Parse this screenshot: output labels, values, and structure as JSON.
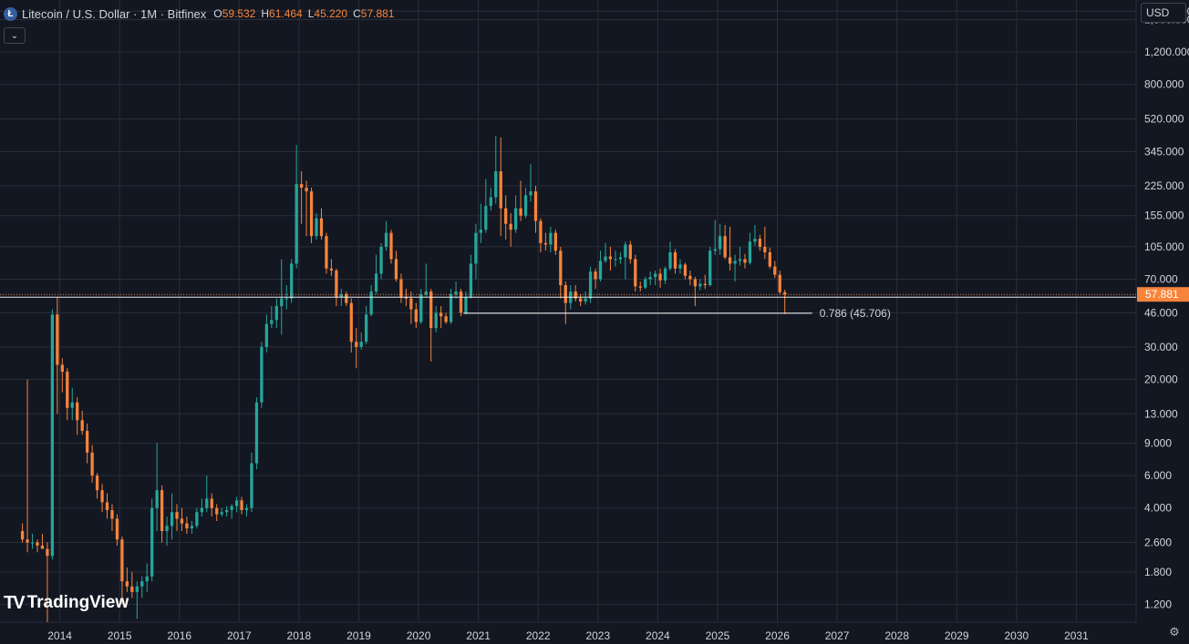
{
  "header": {
    "title": "Litecoin / U.S. Dollar · 1M · Bitfinex",
    "symbol_icon": "litecoin-logo-icon",
    "open_key": "O",
    "open_value": "59.532",
    "high_key": "H",
    "high_value": "61.464",
    "low_key": "L",
    "low_value": "45.220",
    "close_key": "C",
    "close_value": "57.881"
  },
  "currency_label": "USD",
  "logo_text": "TradingView",
  "colors": {
    "background": "#131722",
    "grid": "#2a2e39",
    "up": "#26a69a",
    "down": "#f7843b",
    "price_line": "#f7843b",
    "level_line": "#ffffff",
    "axis_text": "#d1d4dc"
  },
  "chart_data": {
    "type": "candlestick",
    "y_scale": "log",
    "ylim": [
      0.96,
      2300
    ],
    "xlim": [
      "2013-01",
      "2032-01"
    ],
    "y_ticks": [
      "2,000.000",
      "1,800.000",
      "1,200.000",
      "800.000",
      "520.000",
      "345.000",
      "225.000",
      "155.000",
      "105.000",
      "70.000",
      "46.000",
      "30.000",
      "20.000",
      "13.000",
      "9.000",
      "6.000",
      "4.000",
      "2.600",
      "1.800",
      "1.200"
    ],
    "x_ticks": [
      "2014",
      "2015",
      "2016",
      "2017",
      "2018",
      "2019",
      "2020",
      "2021",
      "2022",
      "2023",
      "2024",
      "2025",
      "2026",
      "2027",
      "2028",
      "2029",
      "2030",
      "2031"
    ],
    "last_price": "57.881",
    "fib_level": {
      "label": "0.786 (45.706)",
      "value": 45.706,
      "from": "2020-10",
      "to": "2026-08"
    },
    "ohlc": [
      [
        "2013-05",
        3.0,
        3.3,
        2.6,
        2.7
      ],
      [
        "2013-06",
        2.7,
        20.0,
        2.3,
        2.6
      ],
      [
        "2013-07",
        2.6,
        2.9,
        2.4,
        2.6
      ],
      [
        "2013-08",
        2.6,
        2.7,
        2.3,
        2.5
      ],
      [
        "2013-09",
        2.5,
        2.9,
        2.4,
        2.4
      ],
      [
        "2013-10",
        2.4,
        2.6,
        0.8,
        2.2
      ],
      [
        "2013-11",
        2.2,
        48.0,
        2.1,
        45.0
      ],
      [
        "2013-12",
        45.0,
        56.0,
        13.0,
        24.0
      ],
      [
        "2014-01",
        24.0,
        26.0,
        17.0,
        22.0
      ],
      [
        "2014-02",
        22.0,
        23.0,
        12.0,
        14.0
      ],
      [
        "2014-03",
        14.0,
        18.0,
        12.0,
        15.0
      ],
      [
        "2014-04",
        15.0,
        16.0,
        10.0,
        12.0
      ],
      [
        "2014-05",
        12.0,
        13.5,
        10.0,
        10.5
      ],
      [
        "2014-06",
        10.5,
        11.5,
        7.0,
        8.0
      ],
      [
        "2014-07",
        8.0,
        8.8,
        5.5,
        6.0
      ],
      [
        "2014-08",
        6.0,
        6.2,
        4.5,
        5.0
      ],
      [
        "2014-09",
        5.0,
        5.4,
        3.8,
        4.3
      ],
      [
        "2014-10",
        4.3,
        4.8,
        3.5,
        3.9
      ],
      [
        "2014-11",
        3.9,
        4.2,
        3.0,
        3.5
      ],
      [
        "2014-12",
        3.5,
        3.7,
        2.5,
        2.7
      ],
      [
        "2015-01",
        2.7,
        2.8,
        1.2,
        1.6
      ],
      [
        "2015-02",
        1.6,
        1.9,
        1.4,
        1.5
      ],
      [
        "2015-03",
        1.5,
        1.8,
        1.3,
        1.4
      ],
      [
        "2015-04",
        1.4,
        1.6,
        1.0,
        1.5
      ],
      [
        "2015-05",
        1.5,
        1.7,
        1.3,
        1.6
      ],
      [
        "2015-06",
        1.6,
        2.0,
        1.4,
        1.7
      ],
      [
        "2015-07",
        1.7,
        4.5,
        1.6,
        4.0
      ],
      [
        "2015-08",
        4.0,
        9.0,
        3.0,
        5.0
      ],
      [
        "2015-09",
        5.0,
        5.3,
        2.6,
        3.0
      ],
      [
        "2015-10",
        3.0,
        3.6,
        2.5,
        3.2
      ],
      [
        "2015-11",
        3.2,
        4.8,
        2.7,
        3.8
      ],
      [
        "2015-12",
        3.8,
        4.2,
        3.0,
        3.5
      ],
      [
        "2016-01",
        3.5,
        4.0,
        3.0,
        3.3
      ],
      [
        "2016-02",
        3.3,
        3.6,
        2.9,
        3.1
      ],
      [
        "2016-03",
        3.1,
        3.4,
        2.9,
        3.2
      ],
      [
        "2016-04",
        3.2,
        4.0,
        3.1,
        3.8
      ],
      [
        "2016-05",
        3.8,
        4.5,
        3.6,
        4.0
      ],
      [
        "2016-06",
        4.0,
        6.0,
        3.8,
        4.5
      ],
      [
        "2016-07",
        4.5,
        4.8,
        3.6,
        4.0
      ],
      [
        "2016-08",
        4.0,
        4.2,
        3.4,
        3.7
      ],
      [
        "2016-09",
        3.7,
        4.0,
        3.6,
        3.8
      ],
      [
        "2016-10",
        3.8,
        4.1,
        3.6,
        3.9
      ],
      [
        "2016-11",
        3.9,
        4.2,
        3.5,
        4.1
      ],
      [
        "2016-12",
        4.1,
        4.6,
        3.8,
        4.4
      ],
      [
        "2017-01",
        4.4,
        4.6,
        3.7,
        3.9
      ],
      [
        "2017-02",
        3.9,
        4.2,
        3.6,
        4.0
      ],
      [
        "2017-03",
        4.0,
        8.0,
        3.8,
        7.0
      ],
      [
        "2017-04",
        7.0,
        16.0,
        6.5,
        15.0
      ],
      [
        "2017-05",
        15.0,
        32.0,
        14.0,
        30.0
      ],
      [
        "2017-06",
        30.0,
        45.0,
        28.0,
        40.0
      ],
      [
        "2017-07",
        40.0,
        50.0,
        38.0,
        42.0
      ],
      [
        "2017-08",
        42.0,
        55.0,
        38.0,
        50.0
      ],
      [
        "2017-09",
        50.0,
        90.0,
        35.0,
        55.0
      ],
      [
        "2017-10",
        55.0,
        65.0,
        48.0,
        55.0
      ],
      [
        "2017-11",
        55.0,
        90.0,
        52.0,
        85.0
      ],
      [
        "2017-12",
        85.0,
        375.0,
        80.0,
        230.0
      ],
      [
        "2018-01",
        230.0,
        270.0,
        140.0,
        220.0
      ],
      [
        "2018-02",
        220.0,
        240.0,
        120.0,
        210.0
      ],
      [
        "2018-03",
        210.0,
        220.0,
        110.0,
        120.0
      ],
      [
        "2018-04",
        120.0,
        160.0,
        115.0,
        150.0
      ],
      [
        "2018-05",
        150.0,
        170.0,
        115.0,
        120.0
      ],
      [
        "2018-06",
        120.0,
        125.0,
        75.0,
        80.0
      ],
      [
        "2018-07",
        80.0,
        90.0,
        73.0,
        78.0
      ],
      [
        "2018-08",
        78.0,
        80.0,
        50.0,
        56.0
      ],
      [
        "2018-09",
        56.0,
        62.0,
        50.0,
        58.0
      ],
      [
        "2018-10",
        58.0,
        60.0,
        50.0,
        52.0
      ],
      [
        "2018-11",
        52.0,
        55.0,
        28.0,
        32.0
      ],
      [
        "2018-12",
        32.0,
        38.0,
        23.0,
        30.0
      ],
      [
        "2019-01",
        30.0,
        36.0,
        29.0,
        32.0
      ],
      [
        "2019-02",
        32.0,
        50.0,
        31.0,
        45.0
      ],
      [
        "2019-03",
        45.0,
        65.0,
        44.0,
        60.0
      ],
      [
        "2019-04",
        60.0,
        95.0,
        58.0,
        75.0
      ],
      [
        "2019-05",
        75.0,
        110.0,
        70.0,
        105.0
      ],
      [
        "2019-06",
        105.0,
        145.0,
        100.0,
        125.0
      ],
      [
        "2019-07",
        125.0,
        130.0,
        85.0,
        90.0
      ],
      [
        "2019-08",
        90.0,
        100.0,
        68.0,
        70.0
      ],
      [
        "2019-09",
        70.0,
        75.0,
        52.0,
        56.0
      ],
      [
        "2019-10",
        56.0,
        62.0,
        50.0,
        55.0
      ],
      [
        "2019-11",
        55.0,
        60.0,
        40.0,
        48.0
      ],
      [
        "2019-12",
        48.0,
        52.0,
        38.0,
        41.0
      ],
      [
        "2020-01",
        41.0,
        62.0,
        40.0,
        58.0
      ],
      [
        "2020-02",
        58.0,
        85.0,
        56.0,
        60.0
      ],
      [
        "2020-03",
        60.0,
        62.0,
        25.0,
        38.0
      ],
      [
        "2020-04",
        38.0,
        50.0,
        36.0,
        46.0
      ],
      [
        "2020-05",
        46.0,
        50.0,
        38.0,
        44.0
      ],
      [
        "2020-06",
        44.0,
        46.0,
        40.0,
        41.0
      ],
      [
        "2020-07",
        41.0,
        62.0,
        40.0,
        58.0
      ],
      [
        "2020-08",
        58.0,
        68.0,
        55.0,
        60.0
      ],
      [
        "2020-09",
        60.0,
        62.0,
        44.0,
        46.0
      ],
      [
        "2020-10",
        46.0,
        60.0,
        45.0,
        56.0
      ],
      [
        "2020-11",
        56.0,
        95.0,
        55.0,
        85.0
      ],
      [
        "2020-12",
        85.0,
        140.0,
        70.0,
        125.0
      ],
      [
        "2021-01",
        125.0,
        180.0,
        110.0,
        130.0
      ],
      [
        "2021-02",
        130.0,
        245.0,
        125.0,
        175.0
      ],
      [
        "2021-03",
        175.0,
        220.0,
        165.0,
        195.0
      ],
      [
        "2021-04",
        195.0,
        420.0,
        180.0,
        270.0
      ],
      [
        "2021-05",
        270.0,
        412.0,
        120.0,
        170.0
      ],
      [
        "2021-06",
        170.0,
        200.0,
        115.0,
        140.0
      ],
      [
        "2021-07",
        140.0,
        160.0,
        105.0,
        130.0
      ],
      [
        "2021-08",
        130.0,
        200.0,
        125.0,
        170.0
      ],
      [
        "2021-09",
        170.0,
        240.0,
        145.0,
        155.0
      ],
      [
        "2021-10",
        155.0,
        220.0,
        150.0,
        200.0
      ],
      [
        "2021-11",
        200.0,
        295.0,
        185.0,
        210.0
      ],
      [
        "2021-12",
        210.0,
        225.0,
        125.0,
        145.0
      ],
      [
        "2022-01",
        145.0,
        150.0,
        98.0,
        110.0
      ],
      [
        "2022-02",
        110.0,
        125.0,
        100.0,
        108.0
      ],
      [
        "2022-03",
        108.0,
        135.0,
        98.0,
        125.0
      ],
      [
        "2022-04",
        125.0,
        130.0,
        95.0,
        100.0
      ],
      [
        "2022-05",
        100.0,
        105.0,
        55.0,
        65.0
      ],
      [
        "2022-06",
        65.0,
        68.0,
        40.0,
        52.0
      ],
      [
        "2022-07",
        52.0,
        65.0,
        48.0,
        60.0
      ],
      [
        "2022-08",
        60.0,
        65.0,
        53.0,
        55.0
      ],
      [
        "2022-09",
        55.0,
        58.0,
        50.0,
        53.0
      ],
      [
        "2022-10",
        53.0,
        60.0,
        51.0,
        55.0
      ],
      [
        "2022-11",
        55.0,
        82.0,
        52.0,
        77.0
      ],
      [
        "2022-12",
        77.0,
        80.0,
        62.0,
        70.0
      ],
      [
        "2023-01",
        70.0,
        100.0,
        68.0,
        88.0
      ],
      [
        "2023-02",
        88.0,
        110.0,
        86.0,
        93.0
      ],
      [
        "2023-03",
        93.0,
        105.0,
        78.0,
        90.0
      ],
      [
        "2023-04",
        90.0,
        100.0,
        82.0,
        90.0
      ],
      [
        "2023-05",
        90.0,
        98.0,
        85.0,
        92.0
      ],
      [
        "2023-06",
        92.0,
        112.0,
        70.0,
        108.0
      ],
      [
        "2023-07",
        108.0,
        113.0,
        85.0,
        90.0
      ],
      [
        "2023-08",
        90.0,
        95.0,
        60.0,
        64.0
      ],
      [
        "2023-09",
        64.0,
        68.0,
        60.0,
        63.0
      ],
      [
        "2023-10",
        63.0,
        72.0,
        62.0,
        70.0
      ],
      [
        "2023-11",
        70.0,
        77.0,
        65.0,
        72.0
      ],
      [
        "2023-12",
        72.0,
        78.0,
        65.0,
        75.0
      ],
      [
        "2024-01",
        75.0,
        80.0,
        63.0,
        69.0
      ],
      [
        "2024-02",
        69.0,
        82.0,
        66.0,
        80.0
      ],
      [
        "2024-03",
        80.0,
        112.0,
        78.0,
        98.0
      ],
      [
        "2024-04",
        98.0,
        102.0,
        75.0,
        80.0
      ],
      [
        "2024-05",
        80.0,
        90.0,
        75.0,
        84.0
      ],
      [
        "2024-06",
        84.0,
        86.0,
        70.0,
        73.0
      ],
      [
        "2024-07",
        73.0,
        78.0,
        65.0,
        70.0
      ],
      [
        "2024-08",
        70.0,
        72.0,
        50.0,
        64.0
      ],
      [
        "2024-09",
        64.0,
        70.0,
        61.0,
        66.0
      ],
      [
        "2024-10",
        66.0,
        74.0,
        62.0,
        65.0
      ],
      [
        "2024-11",
        65.0,
        105.0,
        64.0,
        100.0
      ],
      [
        "2024-12",
        100.0,
        147.0,
        95.0,
        102.0
      ],
      [
        "2025-01",
        102.0,
        140.0,
        95.0,
        120.0
      ],
      [
        "2025-02",
        120.0,
        138.0,
        90.0,
        92.0
      ],
      [
        "2025-03",
        92.0,
        135.0,
        78.0,
        85.0
      ],
      [
        "2025-04",
        85.0,
        95.0,
        68.0,
        88.0
      ],
      [
        "2025-05",
        88.0,
        105.0,
        83.0,
        90.0
      ],
      [
        "2025-06",
        90.0,
        96.0,
        80.0,
        86.0
      ],
      [
        "2025-07",
        86.0,
        125.0,
        84.0,
        112.0
      ],
      [
        "2025-08",
        112.0,
        138.0,
        106.0,
        116.0
      ],
      [
        "2025-09",
        116.0,
        122.0,
        100.0,
        105.0
      ],
      [
        "2025-10",
        105.0,
        135.0,
        90.0,
        98.0
      ],
      [
        "2025-11",
        98.0,
        104.0,
        80.0,
        82.0
      ],
      [
        "2025-12",
        82.0,
        88.0,
        71.0,
        74.0
      ],
      [
        "2026-01",
        74.0,
        78.0,
        58.0,
        59.5
      ],
      [
        "2026-02",
        59.532,
        61.464,
        45.22,
        57.881
      ]
    ]
  }
}
